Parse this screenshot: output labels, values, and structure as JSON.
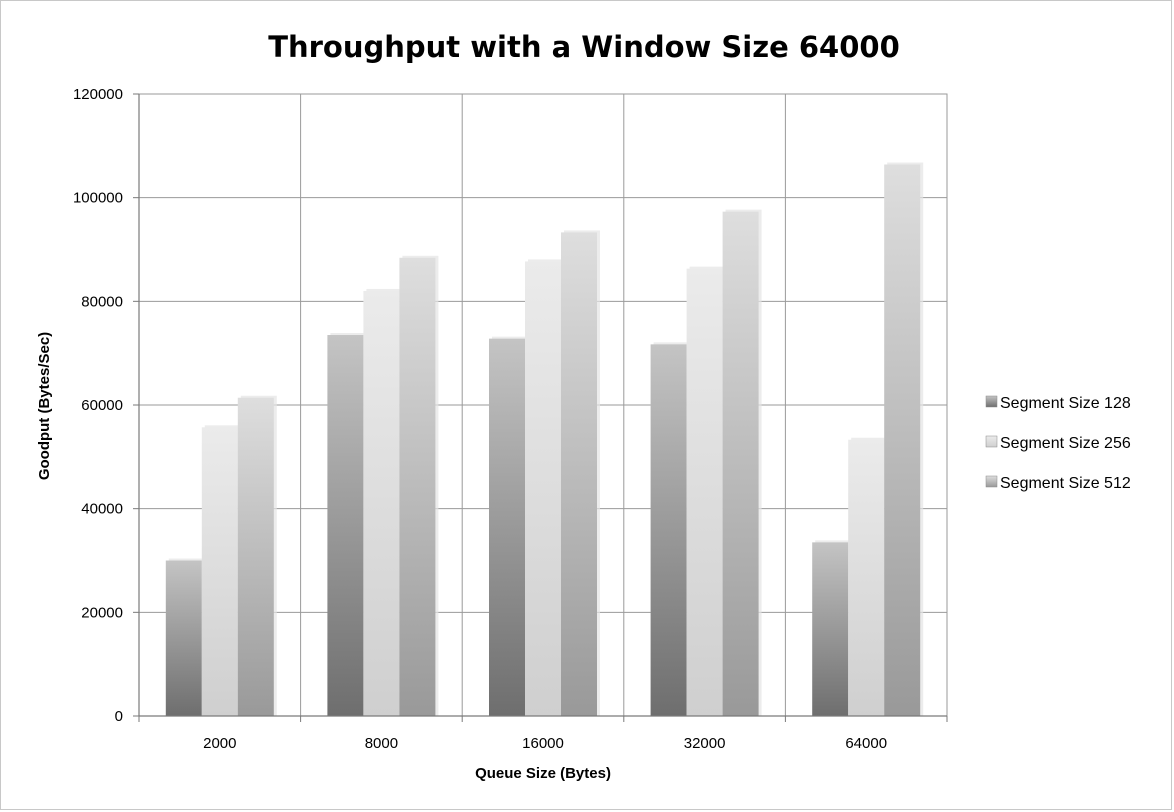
{
  "chart_data": {
    "type": "bar",
    "title": "Throughput with a Window Size 64000",
    "xlabel": "Queue Size (Bytes)",
    "ylabel": "Goodput (Bytes/Sec)",
    "categories": [
      "2000",
      "8000",
      "16000",
      "32000",
      "64000"
    ],
    "series": [
      {
        "name": "Segment Size 128",
        "values": [
          30000,
          73500,
          72800,
          71700,
          33500
        ],
        "color": "#8c8c8c"
      },
      {
        "name": "Segment Size 256",
        "values": [
          55700,
          82000,
          87700,
          86300,
          53300
        ],
        "color": "#dddddd"
      },
      {
        "name": "Segment Size 512",
        "values": [
          61400,
          88400,
          93300,
          97300,
          106400
        ],
        "color": "#bdbdbd"
      }
    ],
    "ylim": [
      0,
      120000
    ],
    "yticks": [
      0,
      20000,
      40000,
      60000,
      80000,
      100000,
      120000
    ],
    "grid": true,
    "legend_position": "right"
  }
}
